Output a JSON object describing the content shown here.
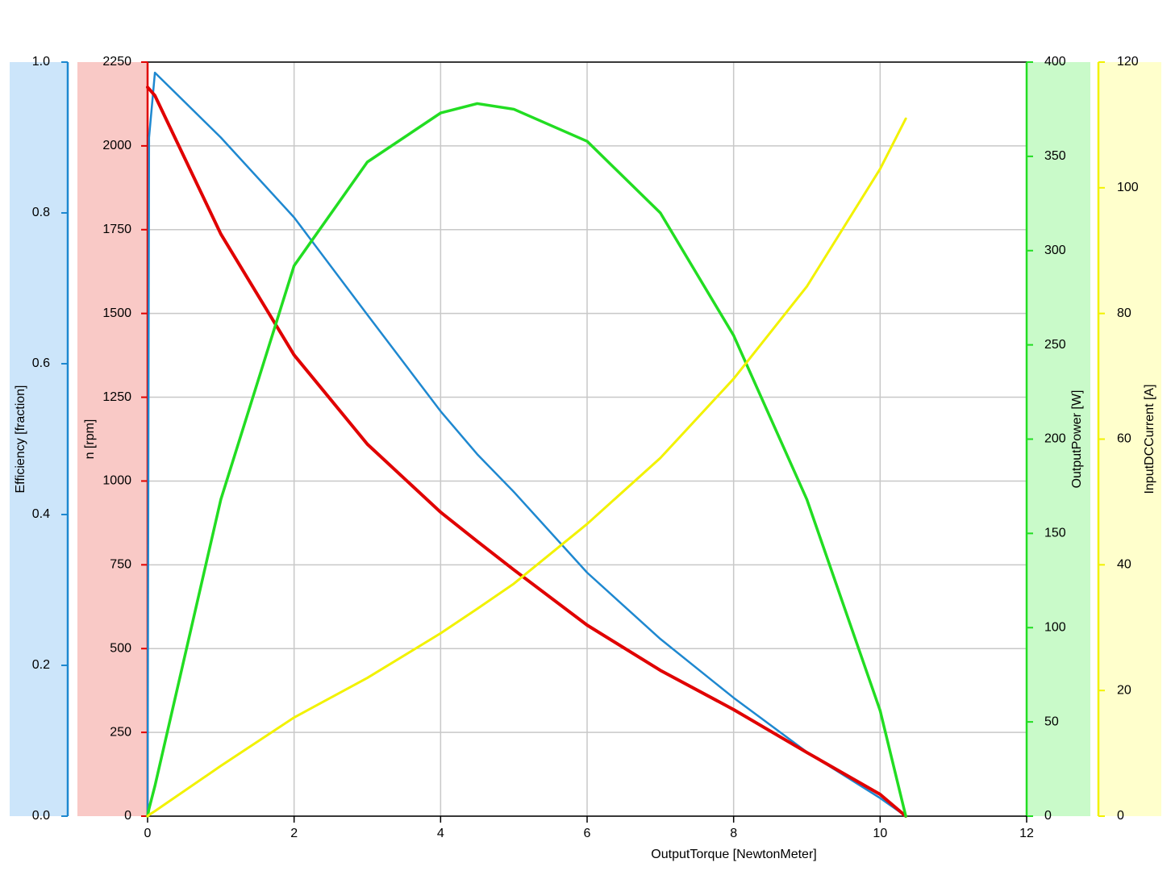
{
  "chart_data": {
    "type": "line",
    "x": [
      0,
      0.02,
      0.1,
      1,
      2,
      3,
      4,
      4.5,
      5,
      6,
      7,
      8,
      9,
      10,
      10.35
    ],
    "xlim": [
      0,
      12
    ],
    "xticks": [
      0,
      2,
      4,
      6,
      8,
      10,
      12
    ],
    "xlabel": "OutputTorque [NewtonMeter]",
    "grid": true,
    "axes": [
      {
        "label": "Efficiency [fraction]",
        "ylim": [
          0,
          1
        ],
        "yticks": [
          {
            "value": 0,
            "label": "0.0"
          },
          0.2,
          0.4,
          0.6,
          0.8,
          {
            "value": 1,
            "label": "1.0"
          }
        ],
        "color": "#1e88d0",
        "band_color": "#cce5fa",
        "side": "left"
      },
      {
        "label": "n [rpm]",
        "ylim": [
          0,
          2250
        ],
        "yticks": [
          0,
          250,
          500,
          750,
          1000,
          1250,
          1500,
          1750,
          2000,
          2250
        ],
        "color": "#e00000",
        "band_color": "#f9c9c6",
        "side": "left"
      },
      {
        "label": "OutputPower [W]",
        "ylim": [
          0,
          400
        ],
        "yticks": [
          0,
          50,
          100,
          150,
          200,
          250,
          300,
          350,
          400
        ],
        "color": "#22dd22",
        "band_color": "#c9fac9",
        "side": "right"
      },
      {
        "label": "InputDCCurrent [A]",
        "ylim": [
          0,
          120
        ],
        "yticks": [
          0,
          20,
          40,
          60,
          80,
          100,
          120
        ],
        "color": "#f2f200",
        "band_color": "#ffffcc",
        "side": "right"
      }
    ],
    "series": [
      {
        "axis": 0,
        "color": "#1e88d0",
        "width": 2.5,
        "values": [
          0,
          0.9,
          0.986,
          0.9,
          0.794,
          0.665,
          0.537,
          0.48,
          0.43,
          0.323,
          0.235,
          0.157,
          0.085,
          0.024,
          0
        ]
      },
      {
        "axis": 1,
        "color": "#e00000",
        "width": 4,
        "values": [
          2175,
          2170,
          2150,
          1737,
          1376,
          1110,
          907,
          820,
          735,
          570,
          435,
          318,
          190,
          65,
          0
        ]
      },
      {
        "axis": 2,
        "color": "#22dd22",
        "width": 3.5,
        "values": [
          0,
          4,
          16,
          168,
          292,
          347,
          373,
          378,
          375,
          358,
          320,
          255,
          168,
          56,
          0
        ]
      },
      {
        "axis": 3,
        "color": "#f2f200",
        "width": 3,
        "values": [
          0,
          0.2,
          0.8,
          8,
          15.7,
          22,
          29.1,
          33,
          37,
          46.5,
          57,
          69.6,
          84.3,
          103,
          111
        ]
      }
    ]
  }
}
